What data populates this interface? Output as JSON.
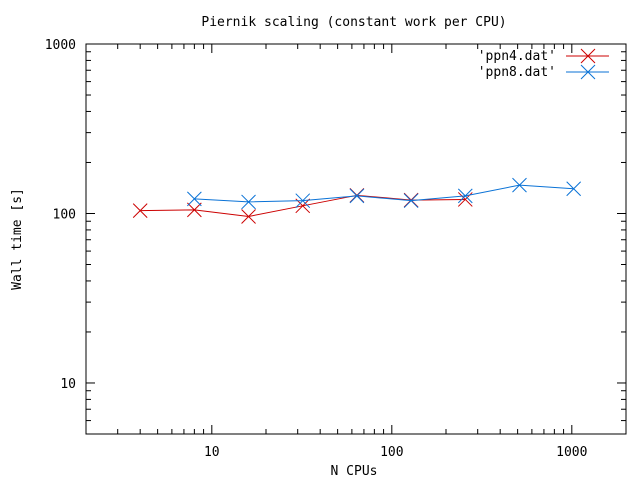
{
  "chart_data": {
    "type": "line",
    "title": "Piernik scaling (constant work per CPU)",
    "xlabel": "N CPUs",
    "ylabel": "Wall time [s]",
    "x_scale": "log",
    "y_scale": "log",
    "xlim": [
      2,
      2000
    ],
    "ylim": [
      5,
      1000
    ],
    "x_ticks": [
      10,
      100,
      1000
    ],
    "x_tick_labels": [
      "10",
      "100",
      "1000"
    ],
    "y_ticks": [
      10,
      100,
      1000
    ],
    "y_tick_labels": [
      "10",
      "100",
      "1000"
    ],
    "grid": false,
    "legend_position": "top-right",
    "series": [
      {
        "name": "'ppn4.dat'",
        "color": "#cc0000",
        "marker": "x",
        "x": [
          4,
          8,
          16,
          32,
          64,
          128,
          256
        ],
        "y": [
          104,
          105,
          96,
          111,
          128,
          120,
          121
        ]
      },
      {
        "name": "'ppn8.dat'",
        "color": "#0a72d6",
        "marker": "x",
        "x": [
          8,
          16,
          32,
          64,
          128,
          256,
          512,
          1024
        ],
        "y": [
          122,
          117,
          119,
          127,
          119,
          127,
          147,
          140
        ]
      }
    ]
  }
}
